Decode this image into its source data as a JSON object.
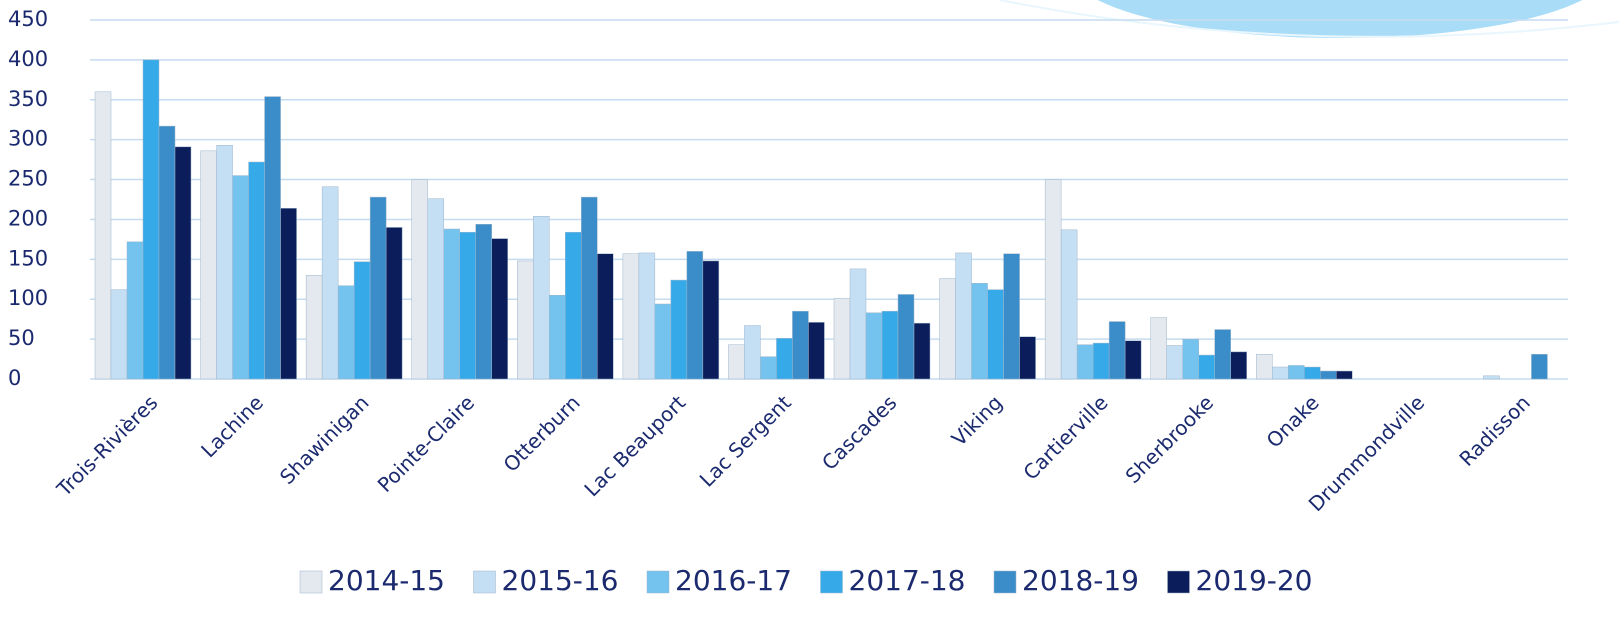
{
  "chart_data": {
    "type": "bar",
    "categories": [
      "Trois-Rivières",
      "Lachine",
      "Shawinigan",
      "Pointe-Claire",
      "Otterburn",
      "Lac Beauport",
      "Lac Sergent",
      "Cascades",
      "Viking",
      "Cartierville",
      "Sherbrooke",
      "Onake",
      "Drummondville",
      "Radisson"
    ],
    "series": [
      {
        "name": "2014-15",
        "color": "#e4e8ef",
        "values": [
          360,
          286,
          130,
          250,
          148,
          157,
          43,
          101,
          126,
          250,
          77,
          31,
          0,
          0
        ]
      },
      {
        "name": "2015-16",
        "color": "#c4def3",
        "values": [
          112,
          293,
          241,
          226,
          204,
          158,
          67,
          138,
          158,
          187,
          42,
          15,
          0,
          4
        ]
      },
      {
        "name": "2016-17",
        "color": "#74c2ee",
        "values": [
          172,
          255,
          117,
          188,
          105,
          94,
          28,
          83,
          120,
          43,
          50,
          17,
          0,
          0
        ]
      },
      {
        "name": "2017-18",
        "color": "#36aae8",
        "values": [
          400,
          272,
          147,
          184,
          184,
          124,
          51,
          85,
          112,
          45,
          30,
          15,
          0,
          0
        ]
      },
      {
        "name": "2018-19",
        "color": "#3a8dc8",
        "values": [
          317,
          354,
          228,
          194,
          228,
          160,
          85,
          106,
          157,
          72,
          62,
          10,
          0,
          31
        ]
      },
      {
        "name": "2019-20",
        "color": "#0b1e5b",
        "values": [
          291,
          214,
          190,
          176,
          157,
          148,
          71,
          70,
          53,
          48,
          34,
          10,
          0,
          0
        ]
      }
    ],
    "ylim": [
      0,
      450
    ],
    "yticks": [
      0,
      50,
      100,
      150,
      200,
      250,
      300,
      350,
      400,
      450
    ],
    "grid": true
  }
}
